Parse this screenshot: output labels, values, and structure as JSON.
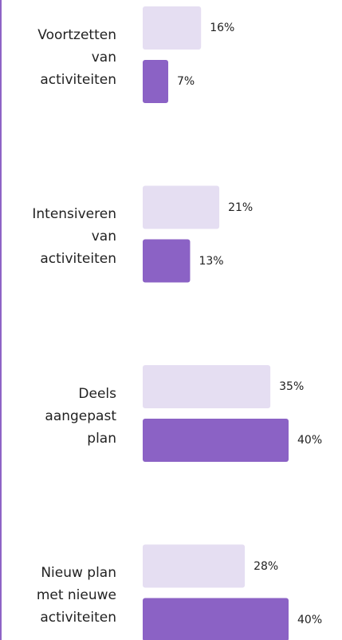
{
  "chart_data": {
    "type": "bar",
    "orientation": "horizontal",
    "categories": [
      "Voortzetten van activiteiten",
      "Intensiveren van activiteiten",
      "Deels aangepast plan",
      "Nieuw plan met nieuwe activiteiten"
    ],
    "series": [
      {
        "color": "#e5def2",
        "values": [
          16,
          21,
          35,
          28
        ],
        "value_labels": [
          "16%",
          "21%",
          "35%",
          "28%"
        ]
      },
      {
        "color": "#8b62c5",
        "values": [
          7,
          13,
          40,
          40
        ],
        "value_labels": [
          "7%",
          "13%",
          "40%",
          "40%"
        ]
      }
    ]
  }
}
